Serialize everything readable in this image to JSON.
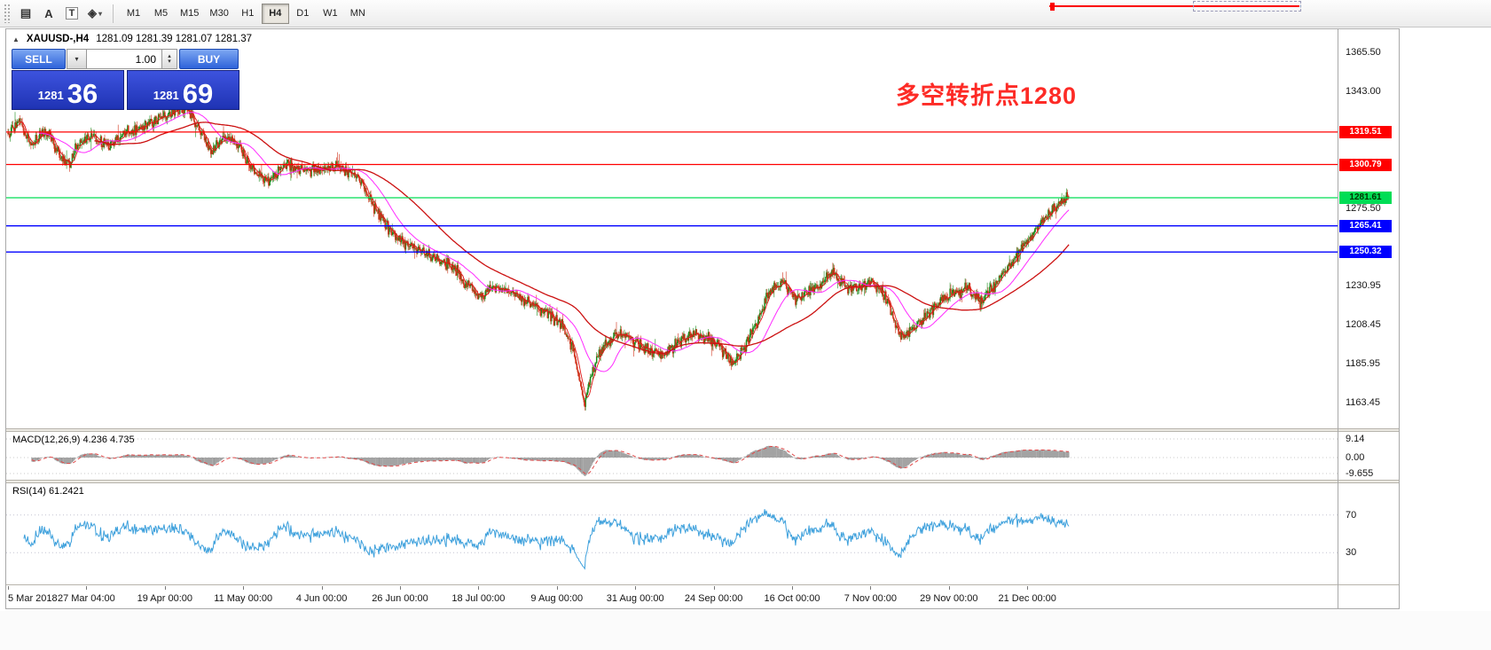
{
  "icons": {
    "triangle_up": "▲",
    "chevron_down": "▾",
    "chevron_up": "▴",
    "grid_tool": "▤",
    "diamond_tool": "◈"
  },
  "toolbar": {
    "letter_tool": "A",
    "text_tool": "T",
    "timeframes": [
      "M1",
      "M5",
      "M15",
      "M30",
      "H1",
      "H4",
      "D1",
      "W1",
      "MN"
    ],
    "active_timeframe": "H4"
  },
  "chart_header": {
    "symbol": "XAUUSD-,H4",
    "ohlc": "1281.09 1281.39 1281.07 1281.37"
  },
  "trade_panel": {
    "sell_label": "SELL",
    "buy_label": "BUY",
    "volume": "1.00",
    "sell_price_main": "1281",
    "sell_price_pips": "36",
    "buy_price_main": "1281",
    "buy_price_pips": "69"
  },
  "annotation": {
    "text": "多空转折点1280",
    "color": "#FD2B26"
  },
  "chart_data": {
    "type": "candlestick",
    "symbol": "XAUUSD-",
    "timeframe": "H4",
    "bars": 1340,
    "last_close": 1281.37,
    "last_ohlc": {
      "open": 1281.09,
      "high": 1281.39,
      "low": 1281.07,
      "close": 1281.37
    },
    "colors": {
      "up": "#1A8A1A",
      "down": "#D03018"
    },
    "price_path": [
      [
        0,
        1318
      ],
      [
        0.01,
        1326
      ],
      [
        0.022,
        1312
      ],
      [
        0.035,
        1321
      ],
      [
        0.048,
        1307
      ],
      [
        0.058,
        1302
      ],
      [
        0.068,
        1315
      ],
      [
        0.08,
        1317
      ],
      [
        0.095,
        1311
      ],
      [
        0.11,
        1319
      ],
      [
        0.125,
        1322
      ],
      [
        0.14,
        1327
      ],
      [
        0.155,
        1331
      ],
      [
        0.168,
        1334
      ],
      [
        0.18,
        1322
      ],
      [
        0.192,
        1308
      ],
      [
        0.205,
        1317
      ],
      [
        0.218,
        1311
      ],
      [
        0.232,
        1297
      ],
      [
        0.245,
        1291
      ],
      [
        0.262,
        1301
      ],
      [
        0.278,
        1297
      ],
      [
        0.295,
        1298
      ],
      [
        0.312,
        1300
      ],
      [
        0.33,
        1294
      ],
      [
        0.345,
        1277
      ],
      [
        0.36,
        1263
      ],
      [
        0.372,
        1257
      ],
      [
        0.388,
        1251
      ],
      [
        0.402,
        1247
      ],
      [
        0.418,
        1243
      ],
      [
        0.432,
        1231
      ],
      [
        0.445,
        1225
      ],
      [
        0.458,
        1231
      ],
      [
        0.47,
        1229
      ],
      [
        0.483,
        1223
      ],
      [
        0.497,
        1219
      ],
      [
        0.51,
        1215
      ],
      [
        0.522,
        1209
      ],
      [
        0.533,
        1193
      ],
      [
        0.543,
        1163
      ],
      [
        0.549,
        1177
      ],
      [
        0.558,
        1193
      ],
      [
        0.57,
        1201
      ],
      [
        0.583,
        1203
      ],
      [
        0.595,
        1197
      ],
      [
        0.608,
        1193
      ],
      [
        0.62,
        1191
      ],
      [
        0.633,
        1199
      ],
      [
        0.645,
        1203
      ],
      [
        0.658,
        1201
      ],
      [
        0.67,
        1197
      ],
      [
        0.682,
        1187
      ],
      [
        0.693,
        1193
      ],
      [
        0.705,
        1209
      ],
      [
        0.718,
        1227
      ],
      [
        0.73,
        1233
      ],
      [
        0.742,
        1223
      ],
      [
        0.755,
        1227
      ],
      [
        0.768,
        1233
      ],
      [
        0.778,
        1239
      ],
      [
        0.79,
        1229
      ],
      [
        0.802,
        1231
      ],
      [
        0.815,
        1233
      ],
      [
        0.828,
        1223
      ],
      [
        0.842,
        1201
      ],
      [
        0.855,
        1207
      ],
      [
        0.868,
        1215
      ],
      [
        0.88,
        1223
      ],
      [
        0.893,
        1227
      ],
      [
        0.905,
        1229
      ],
      [
        0.916,
        1222
      ],
      [
        0.928,
        1231
      ],
      [
        0.94,
        1239
      ],
      [
        0.952,
        1249
      ],
      [
        0.962,
        1257
      ],
      [
        0.975,
        1269
      ],
      [
        0.988,
        1277
      ],
      [
        1,
        1281.4
      ]
    ],
    "levels": [
      {
        "price": 1319.51,
        "label": "1319.51",
        "color": "#FF0000",
        "text_color": "#FFFFFF"
      },
      {
        "price": 1300.79,
        "label": "1300.79",
        "color": "#FF0000",
        "text_color": "#FFFFFF"
      },
      {
        "price": 1281.61,
        "label": "1281.61",
        "color": "#00DD55",
        "text_color": "#003300"
      },
      {
        "price": 1265.41,
        "label": "1265.41",
        "color": "#0000FF",
        "text_color": "#FFFFFF"
      },
      {
        "price": 1250.32,
        "label": "1250.32",
        "color": "#0000FF",
        "text_color": "#FFFFFF"
      }
    ],
    "y_tick_labels": [
      "1365.50",
      "1343.00",
      "1275.50",
      "1230.95",
      "1208.45",
      "1185.95",
      "1163.45"
    ],
    "x_tick_labels": [
      "5 Mar 2018",
      "27 Mar 04:00",
      "19 Apr 00:00",
      "11 May 00:00",
      "4 Jun 00:00",
      "26 Jun 00:00",
      "18 Jul 00:00",
      "9 Aug 00:00",
      "31 Aug 00:00",
      "24 Sep 00:00",
      "16 Oct 00:00",
      "7 Nov 00:00",
      "29 Nov 00:00",
      "21 Dec 00:00"
    ],
    "moving_averages": [
      {
        "period": 8,
        "color": "#E01616"
      },
      {
        "period": 40,
        "color": "#FF2BFF"
      },
      {
        "period": 110,
        "color": "#CC1111"
      }
    ],
    "indicators": {
      "macd": {
        "label": "MACD(12,26,9) 4.236 4.735",
        "fast": 12,
        "slow": 26,
        "signal": 9,
        "values": [
          4.236,
          4.735
        ],
        "axis_labels": [
          "9.14",
          "0.00",
          "-9.655"
        ],
        "histogram_color": "#999999",
        "signal_color": "#E04848"
      },
      "rsi": {
        "label": "RSI(14) 61.2421",
        "period": 14,
        "value": 61.2421,
        "levels": [
          70,
          30
        ],
        "level_labels": [
          "70",
          "30"
        ],
        "color": "#3DA0DC"
      }
    }
  }
}
